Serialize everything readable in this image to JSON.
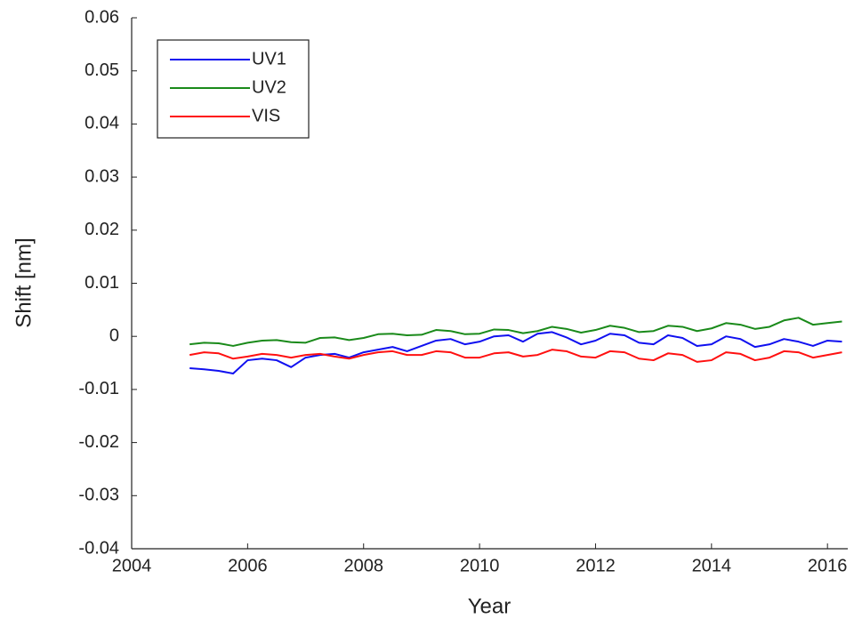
{
  "chart_data": {
    "type": "line",
    "x_label": "Year",
    "y_label": "Shift [nm]",
    "xlim": [
      2004,
      2016.35
    ],
    "xticks": [
      2004,
      2006,
      2008,
      2010,
      2012,
      2014,
      2016
    ],
    "ylim": [
      -0.04,
      0.06
    ],
    "yticks": [
      -0.04,
      -0.03,
      -0.02,
      -0.01,
      0,
      0.01,
      0.02,
      0.03,
      0.04,
      0.05,
      0.06
    ],
    "legend": "upper left",
    "grid": false,
    "x": [
      2005,
      2005.25,
      2005.5,
      2005.75,
      2006,
      2006.25,
      2006.5,
      2006.75,
      2007,
      2007.25,
      2007.5,
      2007.75,
      2008,
      2008.25,
      2008.5,
      2008.75,
      2009,
      2009.25,
      2009.5,
      2009.75,
      2010,
      2010.25,
      2010.5,
      2010.75,
      2011,
      2011.25,
      2011.5,
      2011.75,
      2012,
      2012.25,
      2012.5,
      2012.75,
      2013,
      2013.25,
      2013.5,
      2013.75,
      2014,
      2014.25,
      2014.5,
      2014.75,
      2015,
      2015.25,
      2015.5,
      2015.75,
      2016,
      2016.25
    ],
    "series": [
      {
        "name": "UV1",
        "color": "#1010f0",
        "values": [
          -0.006,
          -0.0062,
          -0.0065,
          -0.007,
          -0.0045,
          -0.0042,
          -0.0045,
          -0.0058,
          -0.004,
          -0.0035,
          -0.0033,
          -0.004,
          -0.003,
          -0.0025,
          -0.002,
          -0.0028,
          -0.0018,
          -0.0008,
          -0.0005,
          -0.0015,
          -0.001,
          0,
          0.0002,
          -0.001,
          0.0005,
          0.0008,
          -0.0002,
          -0.0015,
          -0.0008,
          0.0005,
          0.0002,
          -0.0012,
          -0.0015,
          0.0002,
          -0.0003,
          -0.0018,
          -0.0015,
          0,
          -0.0005,
          -0.002,
          -0.0015,
          -0.0005,
          -0.001,
          -0.0018,
          -0.0008,
          -0.001
        ]
      },
      {
        "name": "UV2",
        "color": "#1a8a1a",
        "values": [
          -0.0015,
          -0.0012,
          -0.0013,
          -0.0018,
          -0.0012,
          -0.0008,
          -0.0007,
          -0.0011,
          -0.0012,
          -0.0003,
          -0.0002,
          -0.0007,
          -0.0003,
          0.0004,
          0.0005,
          0.0002,
          0.0003,
          0.0012,
          0.001,
          0.0004,
          0.0005,
          0.0013,
          0.0012,
          0.0006,
          0.001,
          0.0018,
          0.0014,
          0.0007,
          0.0012,
          0.002,
          0.0016,
          0.0008,
          0.001,
          0.002,
          0.0018,
          0.001,
          0.0015,
          0.0025,
          0.0022,
          0.0014,
          0.0018,
          0.003,
          0.0035,
          0.0022,
          0.0025,
          0.0028
        ]
      },
      {
        "name": "VIS",
        "color": "#ff1010",
        "values": [
          -0.0035,
          -0.003,
          -0.0032,
          -0.0042,
          -0.0038,
          -0.0033,
          -0.0035,
          -0.004,
          -0.0035,
          -0.0033,
          -0.0038,
          -0.0042,
          -0.0035,
          -0.003,
          -0.0028,
          -0.0035,
          -0.0035,
          -0.0028,
          -0.003,
          -0.004,
          -0.004,
          -0.0032,
          -0.003,
          -0.0038,
          -0.0035,
          -0.0025,
          -0.0028,
          -0.0038,
          -0.004,
          -0.0028,
          -0.003,
          -0.0042,
          -0.0045,
          -0.0032,
          -0.0035,
          -0.0048,
          -0.0045,
          -0.003,
          -0.0033,
          -0.0045,
          -0.004,
          -0.0028,
          -0.003,
          -0.004,
          -0.0035,
          -0.003
        ]
      }
    ]
  }
}
